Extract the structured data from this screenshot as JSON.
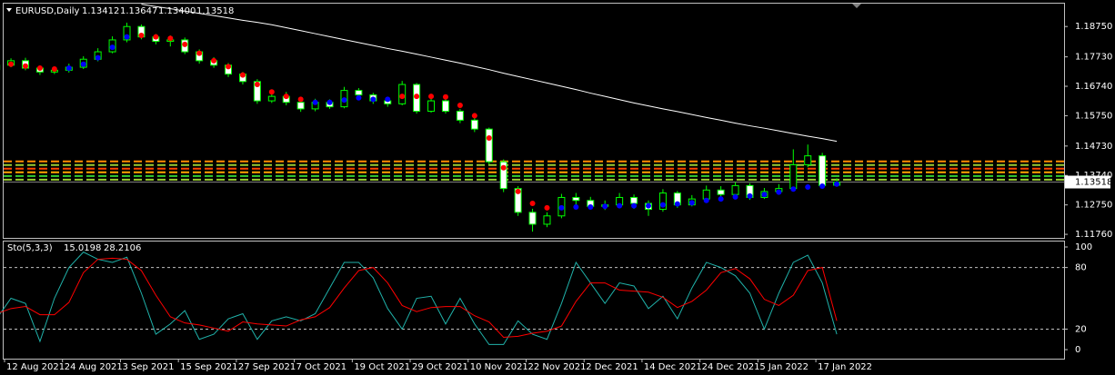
{
  "chart_data": [
    {
      "type": "candlestick",
      "title": "EURUSD,Daily",
      "header_values": [
        "1.13412",
        "1.13647",
        "1.13400",
        "1.13518"
      ],
      "categories": [
        null,
        null,
        "12 Aug 2021",
        null,
        null,
        null,
        "24 Aug 2021",
        null,
        null,
        null,
        "3 Sep 2021",
        null,
        null,
        null,
        "15 Sep 2021",
        null,
        null,
        null,
        "27 Sep 2021",
        null,
        null,
        null,
        "7 Oct 2021",
        null,
        null,
        null,
        "19 Oct 2021",
        null,
        null,
        null,
        "29 Oct 2021",
        null,
        null,
        null,
        "10 Nov 2021",
        null,
        null,
        null,
        "22 Nov 2021",
        null,
        null,
        null,
        "2 Dec 2021",
        null,
        null,
        null,
        "14 Dec 2021",
        null,
        null,
        null,
        "24 Dec 2021",
        null,
        null,
        null,
        "5 Jan 2022",
        null,
        null,
        null,
        "17 Jan 2022"
      ],
      "open": [
        1.173,
        1.1745,
        1.176,
        1.1735,
        1.1722,
        1.1728,
        1.1738,
        1.1765,
        1.179,
        1.183,
        1.1875,
        1.184,
        1.1825,
        1.183,
        1.179,
        1.176,
        1.1745,
        1.1715,
        1.169,
        1.1625,
        1.164,
        1.162,
        1.1598,
        1.162,
        1.1605,
        1.166,
        1.1645,
        1.1625,
        1.1615,
        1.168,
        1.159,
        1.1625,
        1.159,
        1.156,
        1.153,
        1.142,
        1.133,
        1.125,
        1.121,
        1.1238,
        1.13,
        1.129,
        1.127,
        1.1275,
        1.13,
        1.128,
        1.126,
        1.1315,
        1.1275,
        1.1295,
        1.1325,
        1.131,
        1.134,
        1.13,
        1.132,
        1.133,
        1.141,
        1.144,
        1.13412
      ],
      "high": [
        1.1762,
        1.1768,
        1.177,
        1.1742,
        1.174,
        1.175,
        1.1775,
        1.1802,
        1.1842,
        1.1888,
        1.1882,
        1.185,
        1.1845,
        1.1838,
        1.1798,
        1.1772,
        1.1752,
        1.1722,
        1.1698,
        1.1652,
        1.1655,
        1.1628,
        1.1632,
        1.163,
        1.1672,
        1.1668,
        1.1652,
        1.1638,
        1.1692,
        1.1685,
        1.164,
        1.1632,
        1.1598,
        1.1568,
        1.1535,
        1.1428,
        1.1338,
        1.1262,
        1.125,
        1.1312,
        1.1315,
        1.1302,
        1.129,
        1.1315,
        1.131,
        1.129,
        1.1328,
        1.1322,
        1.1308,
        1.134,
        1.1338,
        1.1352,
        1.1348,
        1.1332,
        1.1345,
        1.1462,
        1.1478,
        1.145,
        1.13647
      ],
      "low": [
        1.1722,
        1.1738,
        1.1728,
        1.1712,
        1.1715,
        1.172,
        1.1732,
        1.1758,
        1.1785,
        1.1822,
        1.1832,
        1.1815,
        1.1808,
        1.1782,
        1.175,
        1.1736,
        1.1705,
        1.168,
        1.1615,
        1.1618,
        1.161,
        1.1588,
        1.159,
        1.1598,
        1.16,
        1.1632,
        1.1615,
        1.1605,
        1.161,
        1.1582,
        1.1585,
        1.1582,
        1.155,
        1.152,
        1.1412,
        1.1318,
        1.1238,
        1.1185,
        1.12,
        1.123,
        1.127,
        1.1262,
        1.1258,
        1.1265,
        1.1262,
        1.1238,
        1.1252,
        1.1265,
        1.127,
        1.1288,
        1.1298,
        1.1302,
        1.1292,
        1.1295,
        1.131,
        1.1325,
        1.1402,
        1.133,
        1.134
      ],
      "close": [
        1.1745,
        1.176,
        1.1735,
        1.1722,
        1.1728,
        1.1738,
        1.1765,
        1.179,
        1.183,
        1.1875,
        1.184,
        1.1825,
        1.183,
        1.179,
        1.176,
        1.1745,
        1.1715,
        1.169,
        1.1625,
        1.164,
        1.162,
        1.1598,
        1.162,
        1.1605,
        1.166,
        1.1645,
        1.1625,
        1.1615,
        1.168,
        1.159,
        1.1625,
        1.159,
        1.156,
        1.153,
        1.142,
        1.133,
        1.125,
        1.121,
        1.1238,
        1.13,
        1.129,
        1.127,
        1.1275,
        1.13,
        1.128,
        1.126,
        1.1315,
        1.1275,
        1.1295,
        1.1325,
        1.131,
        1.134,
        1.13,
        1.132,
        1.133,
        1.141,
        1.144,
        1.134,
        1.13518
      ],
      "up_color": "#000000",
      "down_color": "#ffffff",
      "wick_color": "#00ff00",
      "overlays": [
        {
          "style": "line",
          "color": "#ffffff",
          "values": [
            null,
            null,
            null,
            null,
            null,
            null,
            null,
            null,
            null,
            null,
            1.195,
            1.1942,
            1.1935,
            1.1927,
            1.1919,
            1.1912,
            1.1904,
            1.1896,
            1.1889,
            1.1881,
            1.1871,
            1.1861,
            1.1851,
            1.1841,
            1.1831,
            1.1821,
            1.1811,
            1.1801,
            1.1792,
            1.1782,
            1.1772,
            1.1762,
            1.1752,
            1.1741,
            1.173,
            1.1718,
            1.1707,
            1.1696,
            1.1685,
            1.1674,
            1.1663,
            1.1651,
            1.164,
            1.1629,
            1.1618,
            1.1608,
            1.1598,
            1.1589,
            1.1579,
            1.1569,
            1.156,
            1.155,
            1.1541,
            1.1533,
            1.1524,
            1.1515,
            1.1506,
            1.1498,
            1.1489
          ]
        },
        {
          "style": "dots",
          "color": "#ff0000",
          "values": [
            1.1755,
            1.1748,
            1.1742,
            1.1735,
            1.1732,
            null,
            null,
            null,
            null,
            null,
            1.1845,
            1.184,
            1.1835,
            1.1815,
            1.1785,
            1.176,
            1.174,
            1.1712,
            1.168,
            1.1655,
            1.164,
            1.163,
            null,
            null,
            null,
            null,
            null,
            null,
            1.164,
            1.164,
            1.164,
            1.1638,
            1.161,
            1.1575,
            1.15,
            1.14,
            1.132,
            1.128,
            1.1265,
            null,
            null,
            null,
            null,
            null,
            null,
            null,
            null,
            null,
            null,
            null,
            null,
            null,
            null,
            null,
            null,
            null,
            null,
            null,
            null
          ]
        },
        {
          "style": "dots",
          "color": "#0000ff",
          "values": [
            null,
            null,
            null,
            null,
            null,
            1.1735,
            1.1748,
            1.177,
            1.1805,
            1.184,
            null,
            null,
            null,
            null,
            null,
            null,
            null,
            null,
            null,
            null,
            null,
            null,
            1.162,
            1.162,
            1.1628,
            1.1635,
            1.163,
            1.163,
            null,
            null,
            null,
            null,
            null,
            null,
            null,
            null,
            null,
            null,
            null,
            1.1265,
            1.1268,
            1.1268,
            1.127,
            1.1272,
            1.1272,
            1.1272,
            1.1275,
            1.1278,
            1.1282,
            1.129,
            1.1295,
            1.1302,
            1.1305,
            1.131,
            1.1318,
            1.1328,
            1.1335,
            1.1338,
            1.1345
          ]
        }
      ],
      "levels": [
        {
          "value": 1.14213,
          "color": "#ff8c00"
        },
        {
          "value": 1.1409,
          "color": "#9acd32"
        },
        {
          "value": 1.13968,
          "color": "#ff4500"
        },
        {
          "value": 1.13845,
          "color": "#ffa500"
        },
        {
          "value": 1.13722,
          "color": "#32cd32"
        },
        {
          "value": 1.136,
          "color": "#9acd32"
        }
      ],
      "current_price": {
        "value": 1.13518,
        "label": "1.13518"
      },
      "ylim": [
        1.1164,
        1.1952
      ],
      "yticks": [
        {
          "value": 1.1875,
          "label": "1.18750"
        },
        {
          "value": 1.1773,
          "label": "1.17730"
        },
        {
          "value": 1.1674,
          "label": "1.16740"
        },
        {
          "value": 1.1575,
          "label": "1.15750"
        },
        {
          "value": 1.1473,
          "label": "1.14730"
        },
        {
          "value": 1.1374,
          "label": "1.13740"
        },
        {
          "value": 1.1275,
          "label": "1.12750"
        },
        {
          "value": 1.1176,
          "label": "1.11760"
        }
      ]
    },
    {
      "type": "line",
      "title": "Sto(5,3,3)",
      "header_values": [
        "15.0198",
        "28.2106"
      ],
      "series": [
        {
          "color": "#20b2aa",
          "values": [
            30,
            50,
            45,
            8,
            50,
            80,
            95,
            88,
            85,
            90,
            55,
            15,
            25,
            38,
            10,
            15,
            30,
            35,
            10,
            28,
            32,
            28,
            35,
            60,
            85,
            85,
            70,
            40,
            20,
            50,
            52,
            25,
            50,
            25,
            5,
            5,
            28,
            15,
            10,
            45,
            85,
            65,
            45,
            65,
            62,
            40,
            52,
            30,
            60,
            85,
            80,
            72,
            55,
            20,
            55,
            85,
            92,
            65,
            15
          ]
        },
        {
          "color": "#ff0000",
          "values": [
            35,
            40,
            42,
            34,
            34,
            46,
            75,
            88,
            89,
            88,
            77,
            53,
            32,
            26,
            24,
            21,
            18,
            27,
            25,
            24,
            23,
            29,
            32,
            41,
            60,
            77,
            80,
            65,
            43,
            37,
            41,
            42,
            42,
            33,
            27,
            12,
            13,
            16,
            18,
            23,
            47,
            65,
            65,
            58,
            57,
            56,
            51,
            41,
            47,
            58,
            75,
            79,
            69,
            49,
            43,
            53,
            77,
            80,
            28
          ]
        }
      ],
      "levels": [
        80,
        20
      ],
      "ylim": [
        -8.8,
        105.3
      ],
      "yticks": [
        100,
        80,
        20,
        0
      ]
    }
  ]
}
